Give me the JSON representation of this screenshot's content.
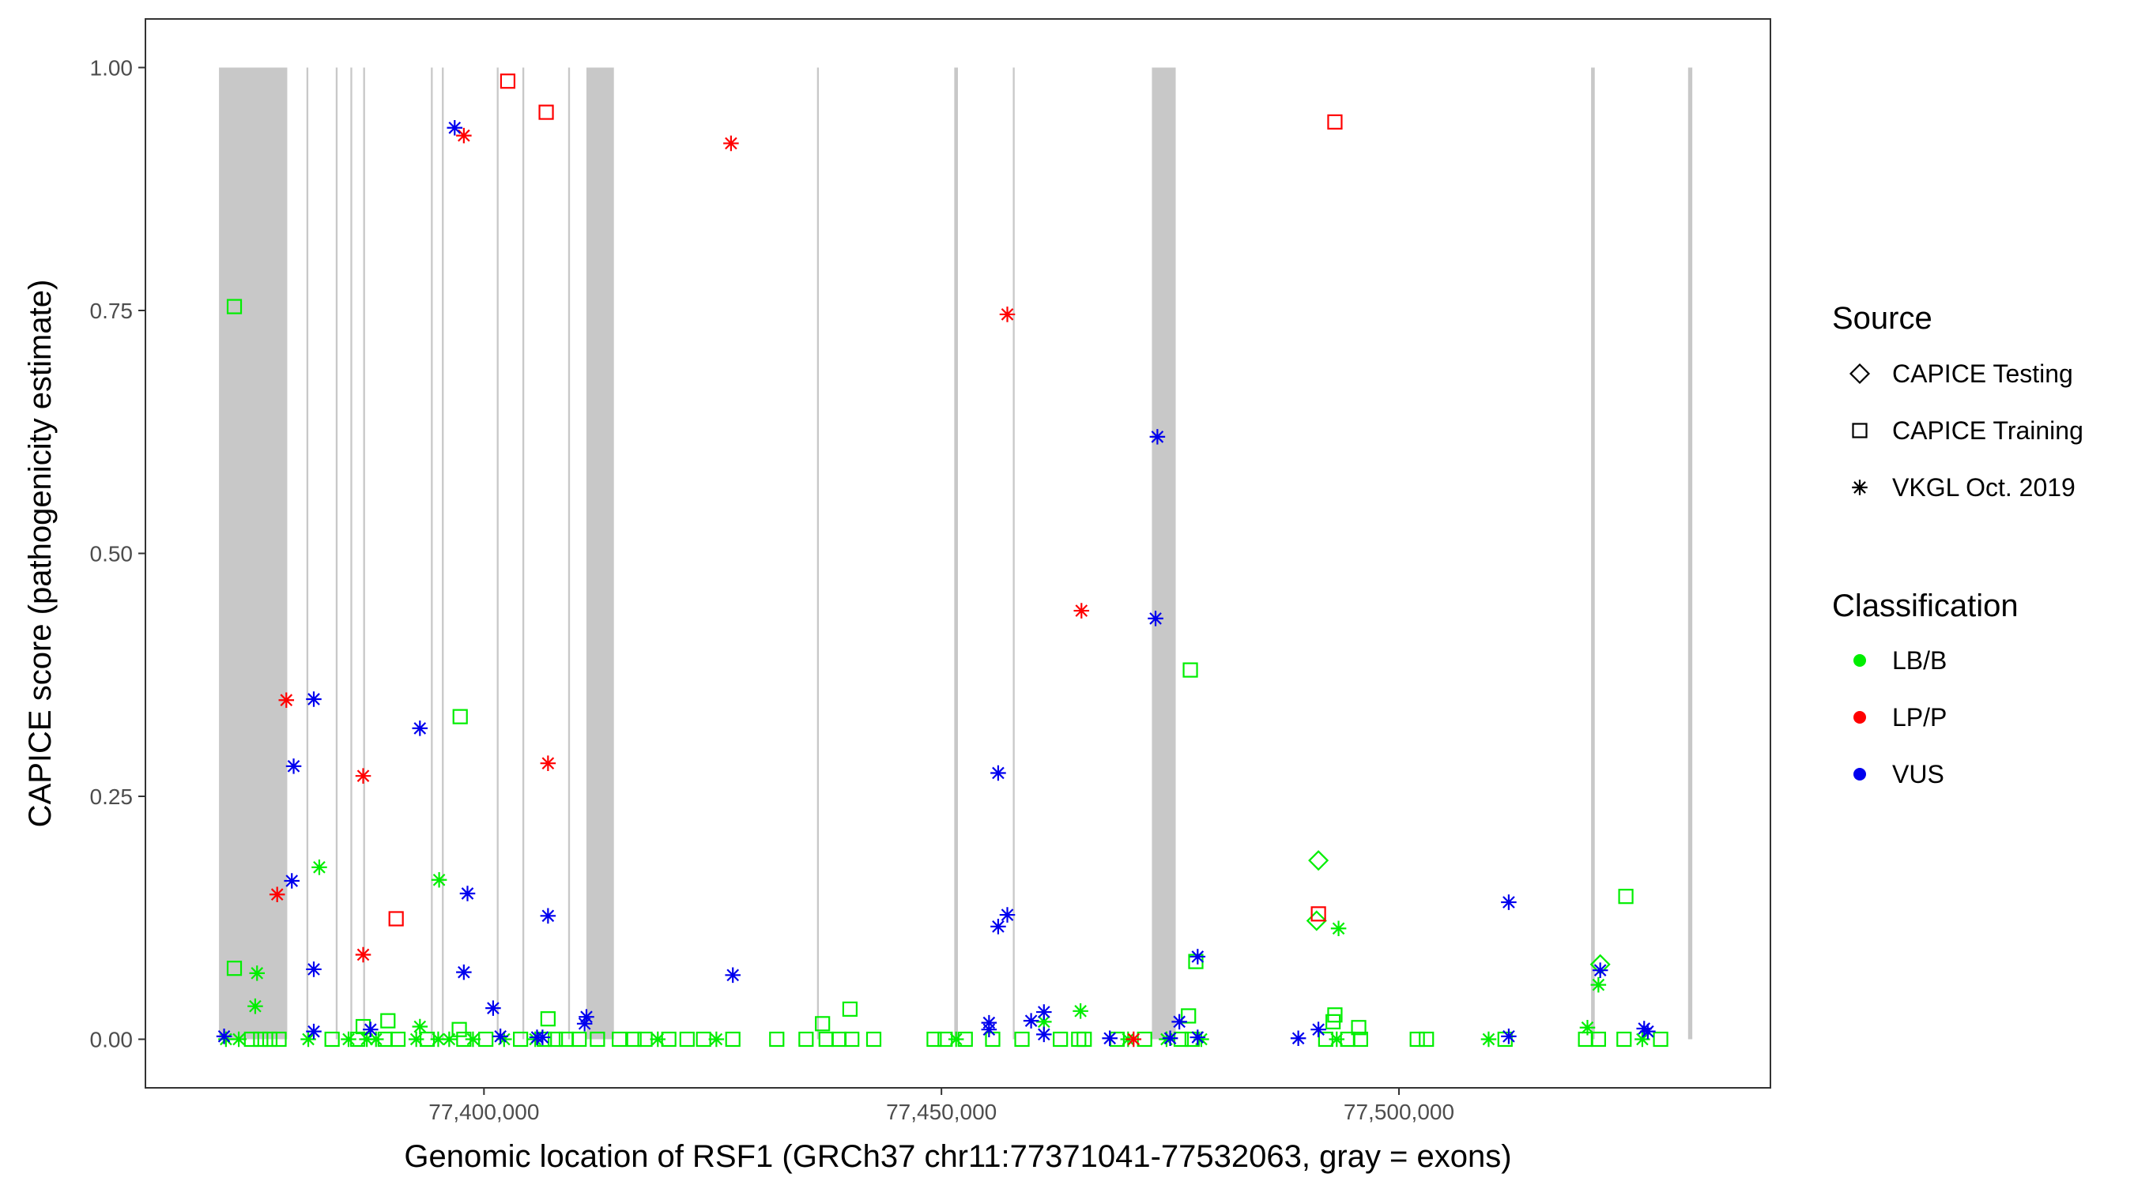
{
  "chart_data": {
    "type": "scatter",
    "xlabel": "Genomic location of RSF1 (GRCh37 chr11:77371041-77532063, gray = exons)",
    "ylabel": "CAPICE score (pathogenicity estimate)",
    "xlim": [
      77363000,
      77540600
    ],
    "ylim": [
      -0.05,
      1.05
    ],
    "x_ticks": [
      77400000,
      77450000,
      77500000
    ],
    "x_tick_labels": [
      "77,400,000",
      "77,450,000",
      "77,500,000"
    ],
    "y_ticks": [
      0,
      0.25,
      0.5,
      0.75,
      1
    ],
    "y_tick_labels": [
      "0.00",
      "0.25",
      "0.50",
      "0.75",
      "1.00"
    ],
    "grid": false,
    "legend_position": "right",
    "exons": [
      [
        77371041,
        77378500
      ],
      [
        77380600,
        77380800
      ],
      [
        77383800,
        77384000
      ],
      [
        77385400,
        77385600
      ],
      [
        77386800,
        77387000
      ],
      [
        77394200,
        77394400
      ],
      [
        77395400,
        77395600
      ],
      [
        77401400,
        77401600
      ],
      [
        77404200,
        77404400
      ],
      [
        77409200,
        77409400
      ],
      [
        77411200,
        77414200
      ],
      [
        77436400,
        77436600
      ],
      [
        77451400,
        77451800
      ],
      [
        77457800,
        77458000
      ],
      [
        77473000,
        77475600
      ],
      [
        77521000,
        77521400
      ],
      [
        77531600,
        77532063
      ]
    ],
    "colors": {
      "LB/B": "#00ee00",
      "LP/P": "#ff0000",
      "VUS": "#0000ee",
      "exon": "#c8c8c8"
    },
    "legend": {
      "source_title": "Source",
      "source_entries": [
        "CAPICE Testing",
        "CAPICE Training",
        "VKGL Oct. 2019"
      ],
      "classification_title": "Classification",
      "classification_entries": [
        "LB/B",
        "LP/P",
        "VUS"
      ]
    },
    "points": [
      [
        77372720,
        0.754,
        "train",
        "LB/B"
      ],
      [
        77372720,
        0.073,
        "train",
        "LB/B"
      ],
      [
        77375200,
        0.068,
        "vkgl",
        "LB/B"
      ],
      [
        77375000,
        0.034,
        "vkgl",
        "LB/B"
      ],
      [
        77382000,
        0.177,
        "vkgl",
        "LB/B"
      ],
      [
        77395100,
        0.164,
        "vkgl",
        "LB/B"
      ],
      [
        77397400,
        0.332,
        "train",
        "LB/B"
      ],
      [
        77407000,
        0.021,
        "train",
        "LB/B"
      ],
      [
        77440000,
        0.031,
        "train",
        "LB/B"
      ],
      [
        77437000,
        0.016,
        "train",
        "LB/B"
      ],
      [
        77461200,
        0.018,
        "vkgl",
        "LB/B"
      ],
      [
        77465200,
        0.029,
        "vkgl",
        "LB/B"
      ],
      [
        77477200,
        0.38,
        "train",
        "LB/B"
      ],
      [
        77477000,
        0.024,
        "train",
        "LB/B"
      ],
      [
        77477800,
        0.08,
        "train",
        "LB/B"
      ],
      [
        77491200,
        0.184,
        "test",
        "LB/B"
      ],
      [
        77491000,
        0.122,
        "test",
        "LB/B"
      ],
      [
        77493400,
        0.114,
        "vkgl",
        "LB/B"
      ],
      [
        77493000,
        0.025,
        "train",
        "LB/B"
      ],
      [
        77492800,
        0.018,
        "train",
        "LB/B"
      ],
      [
        77495600,
        0.012,
        "train",
        "LB/B"
      ],
      [
        77524800,
        0.147,
        "train",
        "LB/B"
      ],
      [
        77522000,
        0.077,
        "test",
        "LB/B"
      ],
      [
        77521800,
        0.056,
        "vkgl",
        "LB/B"
      ],
      [
        77520600,
        0.012,
        "vkgl",
        "LB/B"
      ],
      [
        77389500,
        0.019,
        "train",
        "LB/B"
      ],
      [
        77393000,
        0.013,
        "vkgl",
        "LB/B"
      ],
      [
        77386800,
        0.013,
        "train",
        "LB/B"
      ],
      [
        77397300,
        0.01,
        "train",
        "LB/B"
      ],
      [
        77371800,
        0,
        "vkgl",
        "LB/B"
      ],
      [
        77373200,
        0,
        "vkgl",
        "LB/B"
      ],
      [
        77374600,
        0,
        "train",
        "LB/B"
      ],
      [
        77375600,
        0,
        "train",
        "LB/B"
      ],
      [
        77376600,
        0,
        "train",
        "LB/B"
      ],
      [
        77377600,
        0,
        "train",
        "LB/B"
      ],
      [
        77380800,
        0,
        "vkgl",
        "LB/B"
      ],
      [
        77383400,
        0,
        "train",
        "LB/B"
      ],
      [
        77385200,
        0,
        "vkgl",
        "LB/B"
      ],
      [
        77386200,
        0,
        "train",
        "LB/B"
      ],
      [
        77387200,
        0,
        "vkgl",
        "LB/B"
      ],
      [
        77388200,
        0,
        "vkgl",
        "LB/B"
      ],
      [
        77389200,
        0,
        "train",
        "LB/B"
      ],
      [
        77390600,
        0,
        "train",
        "LB/B"
      ],
      [
        77392600,
        0,
        "vkgl",
        "LB/B"
      ],
      [
        77393800,
        0,
        "train",
        "LB/B"
      ],
      [
        77395000,
        0,
        "vkgl",
        "LB/B"
      ],
      [
        77396200,
        0,
        "vkgl",
        "LB/B"
      ],
      [
        77397800,
        0,
        "train",
        "LB/B"
      ],
      [
        77398800,
        0,
        "vkgl",
        "LB/B"
      ],
      [
        77400200,
        0,
        "train",
        "LB/B"
      ],
      [
        77402200,
        0,
        "vkgl",
        "LB/B"
      ],
      [
        77404000,
        0,
        "train",
        "LB/B"
      ],
      [
        77405600,
        0,
        "vkgl",
        "LB/B"
      ],
      [
        77406600,
        0,
        "train",
        "LB/B"
      ],
      [
        77407800,
        0,
        "train",
        "LB/B"
      ],
      [
        77409000,
        0,
        "train",
        "LB/B"
      ],
      [
        77410400,
        0,
        "train",
        "LB/B"
      ],
      [
        77412400,
        0,
        "train",
        "LB/B"
      ],
      [
        77414800,
        0,
        "train",
        "LB/B"
      ],
      [
        77416400,
        0,
        "train",
        "LB/B"
      ],
      [
        77417600,
        0,
        "train",
        "LB/B"
      ],
      [
        77419000,
        0,
        "vkgl",
        "LB/B"
      ],
      [
        77420200,
        0,
        "train",
        "LB/B"
      ],
      [
        77422200,
        0,
        "train",
        "LB/B"
      ],
      [
        77424000,
        0,
        "train",
        "LB/B"
      ],
      [
        77425400,
        0,
        "vkgl",
        "LB/B"
      ],
      [
        77427200,
        0,
        "train",
        "LB/B"
      ],
      [
        77432000,
        0,
        "train",
        "LB/B"
      ],
      [
        77435200,
        0,
        "train",
        "LB/B"
      ],
      [
        77437400,
        0,
        "train",
        "LB/B"
      ],
      [
        77438800,
        0,
        "train",
        "LB/B"
      ],
      [
        77440200,
        0,
        "train",
        "LB/B"
      ],
      [
        77442600,
        0,
        "train",
        "LB/B"
      ],
      [
        77449200,
        0,
        "train",
        "LB/B"
      ],
      [
        77450400,
        0,
        "train",
        "LB/B"
      ],
      [
        77451600,
        0,
        "vkgl",
        "LB/B"
      ],
      [
        77452600,
        0,
        "train",
        "LB/B"
      ],
      [
        77455600,
        0,
        "train",
        "LB/B"
      ],
      [
        77458800,
        0,
        "train",
        "LB/B"
      ],
      [
        77463000,
        0,
        "train",
        "LB/B"
      ],
      [
        77465000,
        0,
        "train",
        "LB/B"
      ],
      [
        77465600,
        0,
        "train",
        "LB/B"
      ],
      [
        77469200,
        0,
        "train",
        "LB/B"
      ],
      [
        77470400,
        0,
        "vkgl",
        "LB/B"
      ],
      [
        77472200,
        0,
        "train",
        "LB/B"
      ],
      [
        77474600,
        0,
        "vkgl",
        "LB/B"
      ],
      [
        77476200,
        0,
        "train",
        "LB/B"
      ],
      [
        77477400,
        0,
        "train",
        "LB/B"
      ],
      [
        77478400,
        0,
        "vkgl",
        "LB/B"
      ],
      [
        77492000,
        0,
        "train",
        "LB/B"
      ],
      [
        77493200,
        0,
        "vkgl",
        "LB/B"
      ],
      [
        77494400,
        0,
        "train",
        "LB/B"
      ],
      [
        77495800,
        0,
        "train",
        "LB/B"
      ],
      [
        77502000,
        0,
        "train",
        "LB/B"
      ],
      [
        77503000,
        0,
        "train",
        "LB/B"
      ],
      [
        77509800,
        0,
        "vkgl",
        "LB/B"
      ],
      [
        77511600,
        0,
        "train",
        "LB/B"
      ],
      [
        77520400,
        0,
        "train",
        "LB/B"
      ],
      [
        77521800,
        0,
        "train",
        "LB/B"
      ],
      [
        77524600,
        0,
        "train",
        "LB/B"
      ],
      [
        77526600,
        0,
        "vkgl",
        "LB/B"
      ],
      [
        77528600,
        0,
        "train",
        "LB/B"
      ],
      [
        77402600,
        0.986,
        "train",
        "LP/P"
      ],
      [
        77406800,
        0.954,
        "train",
        "LP/P"
      ],
      [
        77397800,
        0.93,
        "vkgl",
        "LP/P"
      ],
      [
        77427000,
        0.922,
        "vkgl",
        "LP/P"
      ],
      [
        77493000,
        0.944,
        "train",
        "LP/P"
      ],
      [
        77457200,
        0.746,
        "vkgl",
        "LP/P"
      ],
      [
        77465300,
        0.441,
        "vkgl",
        "LP/P"
      ],
      [
        77378400,
        0.349,
        "vkgl",
        "LP/P"
      ],
      [
        77407000,
        0.284,
        "vkgl",
        "LP/P"
      ],
      [
        77386800,
        0.271,
        "vkgl",
        "LP/P"
      ],
      [
        77377400,
        0.149,
        "vkgl",
        "LP/P"
      ],
      [
        77390400,
        0.124,
        "train",
        "LP/P"
      ],
      [
        77386800,
        0.087,
        "vkgl",
        "LP/P"
      ],
      [
        77491200,
        0.129,
        "train",
        "LP/P"
      ],
      [
        77471000,
        0,
        "vkgl",
        "LP/P"
      ],
      [
        77396800,
        0.938,
        "vkgl",
        "VUS"
      ],
      [
        77473600,
        0.62,
        "vkgl",
        "VUS"
      ],
      [
        77473400,
        0.433,
        "vkgl",
        "VUS"
      ],
      [
        77381400,
        0.35,
        "vkgl",
        "VUS"
      ],
      [
        77379200,
        0.281,
        "vkgl",
        "VUS"
      ],
      [
        77393000,
        0.32,
        "vkgl",
        "VUS"
      ],
      [
        77456200,
        0.274,
        "vkgl",
        "VUS"
      ],
      [
        77379000,
        0.163,
        "vkgl",
        "VUS"
      ],
      [
        77398200,
        0.15,
        "vkgl",
        "VUS"
      ],
      [
        77407000,
        0.127,
        "vkgl",
        "VUS"
      ],
      [
        77457200,
        0.128,
        "vkgl",
        "VUS"
      ],
      [
        77456200,
        0.116,
        "vkgl",
        "VUS"
      ],
      [
        77512000,
        0.141,
        "vkgl",
        "VUS"
      ],
      [
        77381400,
        0.072,
        "vkgl",
        "VUS"
      ],
      [
        77397800,
        0.069,
        "vkgl",
        "VUS"
      ],
      [
        77427200,
        0.066,
        "vkgl",
        "VUS"
      ],
      [
        77478000,
        0.085,
        "vkgl",
        "VUS"
      ],
      [
        77522000,
        0.071,
        "vkgl",
        "VUS"
      ],
      [
        77401000,
        0.032,
        "vkgl",
        "VUS"
      ],
      [
        77411200,
        0.023,
        "vkgl",
        "VUS"
      ],
      [
        77411000,
        0.016,
        "vkgl",
        "VUS"
      ],
      [
        77455200,
        0.017,
        "vkgl",
        "VUS"
      ],
      [
        77455200,
        0.01,
        "vkgl",
        "VUS"
      ],
      [
        77459800,
        0.019,
        "vkgl",
        "VUS"
      ],
      [
        77461200,
        0.028,
        "vkgl",
        "VUS"
      ],
      [
        77476000,
        0.018,
        "vkgl",
        "VUS"
      ],
      [
        77491200,
        0.01,
        "vkgl",
        "VUS"
      ],
      [
        77526800,
        0.011,
        "vkgl",
        "VUS"
      ],
      [
        77381400,
        0.008,
        "vkgl",
        "VUS"
      ],
      [
        77387600,
        0.01,
        "vkgl",
        "VUS"
      ],
      [
        77371600,
        0.003,
        "vkgl",
        "VUS"
      ],
      [
        77401800,
        0.003,
        "vkgl",
        "VUS"
      ],
      [
        77405800,
        0.002,
        "vkgl",
        "VUS"
      ],
      [
        77406400,
        0.002,
        "vkgl",
        "VUS"
      ],
      [
        77461200,
        0.005,
        "vkgl",
        "VUS"
      ],
      [
        77468400,
        0.001,
        "vkgl",
        "VUS"
      ],
      [
        77475000,
        0.001,
        "vkgl",
        "VUS"
      ],
      [
        77478000,
        0.002,
        "vkgl",
        "VUS"
      ],
      [
        77489000,
        0.001,
        "vkgl",
        "VUS"
      ],
      [
        77512000,
        0.003,
        "vkgl",
        "VUS"
      ],
      [
        77527200,
        0.008,
        "vkgl",
        "VUS"
      ]
    ]
  }
}
